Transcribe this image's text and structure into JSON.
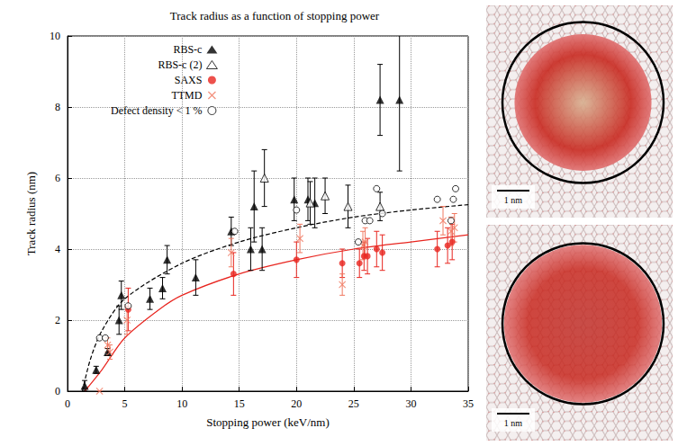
{
  "chart_data": {
    "type": "scatter",
    "title": "Track radius as a function of stopping power",
    "x_label": "Stopping power (keV/nm)",
    "y_label": "Track radius (nm)",
    "xlim": [
      0,
      35
    ],
    "xticks": [
      0,
      5,
      10,
      15,
      20,
      25,
      30,
      35
    ],
    "ylim": [
      0,
      10
    ],
    "yticks": [
      0,
      2,
      4,
      6,
      8,
      10
    ],
    "grid": true,
    "legend": "upper left",
    "series": [
      {
        "name": "RBS-c",
        "color": "#000000",
        "marker": "triangle",
        "x": [
          1.5,
          2.5,
          3.5,
          4.5,
          4.7,
          7.2,
          8.3,
          8.7,
          11.2,
          14.3,
          16.0,
          16.3,
          17.0,
          19.8,
          21.0,
          21.6,
          27.3,
          29.0
        ],
        "values": [
          0.15,
          0.6,
          1.1,
          2.0,
          2.7,
          2.6,
          2.9,
          3.7,
          3.2,
          4.5,
          4.0,
          5.2,
          4.0,
          5.4,
          5.4,
          5.3,
          8.2,
          8.2
        ],
        "errors": [
          0.15,
          0.1,
          0.1,
          0.4,
          0.4,
          0.3,
          0.3,
          0.4,
          0.5,
          0.4,
          0.6,
          1.0,
          0.6,
          0.6,
          0.6,
          0.7,
          1.0,
          2.0
        ]
      },
      {
        "name": "RBS-c (2)",
        "color": "#000000",
        "marker": "triangle-open",
        "x": [
          17.2,
          21.2,
          22.5,
          24.5,
          27.3
        ],
        "values": [
          6.0,
          5.3,
          5.5,
          5.2,
          5.2
        ],
        "errors": [
          0.8,
          0.6,
          0.5,
          0.6,
          0.4
        ]
      },
      {
        "name": "SAXS",
        "color": "#e8251f",
        "marker": "circle",
        "x": [
          5.3,
          14.5,
          20.0,
          24.0,
          25.5,
          25.9,
          26.2,
          27.0,
          27.5,
          32.3,
          33.2,
          33.6
        ],
        "values": [
          2.3,
          3.3,
          3.7,
          3.6,
          3.6,
          3.8,
          3.8,
          4.0,
          3.9,
          4.0,
          4.1,
          4.2
        ],
        "errors": [
          0.6,
          0.6,
          0.5,
          0.4,
          0.4,
          0.4,
          0.5,
          0.5,
          0.5,
          0.5,
          0.5,
          0.5
        ]
      },
      {
        "name": "TTMD",
        "color": "#f07860",
        "marker": "x",
        "x": [
          2.8,
          3.5,
          3.7,
          5.2,
          14.3,
          20.3,
          24.0,
          25.8,
          26.0,
          32.8,
          33.5,
          33.8
        ],
        "values": [
          0.0,
          1.3,
          1.1,
          2.0,
          3.9,
          4.3,
          3.0,
          4.1,
          4.2,
          4.8,
          4.5,
          4.6
        ],
        "errors": [
          0.0,
          0.2,
          0.2,
          0.4,
          0.4,
          0.4,
          0.3,
          0.4,
          0.4,
          0.4,
          0.4,
          0.4
        ]
      },
      {
        "name": "Defect density < 1 %",
        "color": "#000000",
        "marker": "circle-open",
        "x": [
          2.8,
          3.3,
          5.3,
          14.6,
          20.0,
          25.4,
          26.0,
          26.4,
          27.0,
          27.5,
          32.3,
          33.5,
          33.7,
          33.9
        ],
        "values": [
          1.5,
          1.5,
          2.4,
          4.5,
          5.1,
          4.2,
          4.8,
          4.8,
          5.7,
          5.0,
          5.4,
          4.8,
          5.4,
          5.7
        ]
      }
    ],
    "curves": [
      {
        "type": "line",
        "color": "#000000",
        "line_style": "dashed",
        "x": [
          1.3,
          2,
          3,
          5,
          10,
          15,
          20,
          25,
          30,
          35
        ],
        "values": [
          0,
          0.9,
          1.7,
          2.6,
          3.6,
          4.2,
          4.6,
          4.9,
          5.1,
          5.25
        ]
      },
      {
        "type": "line",
        "color": "#e8251f",
        "line_style": "solid",
        "x": [
          1.5,
          3,
          5,
          8,
          10,
          15,
          20,
          25,
          30,
          35
        ],
        "values": [
          0,
          0.6,
          1.5,
          2.3,
          2.7,
          3.3,
          3.7,
          4.0,
          4.2,
          4.4
        ]
      }
    ]
  },
  "images": [
    {
      "scale_label": "1 nm"
    },
    {
      "scale_label": "1 nm"
    }
  ]
}
